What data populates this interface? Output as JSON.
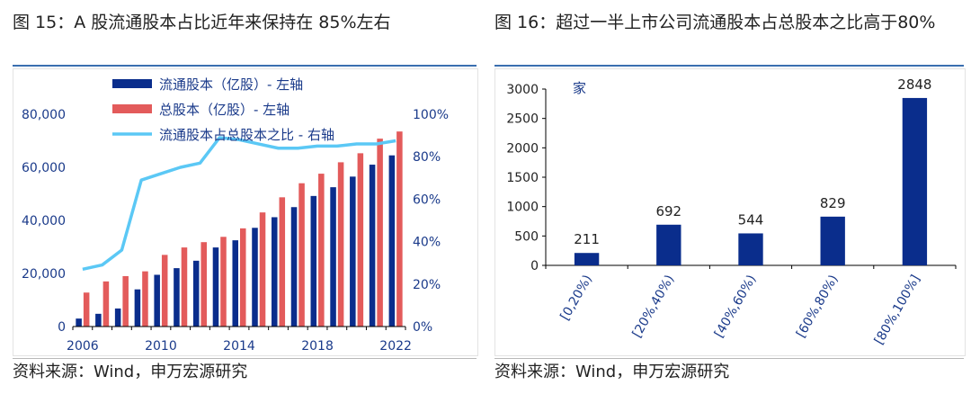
{
  "left_panel": {
    "title": "图 15：A 股流通股本占比近年来保持在 85%左右",
    "source": "资料来源：Wind，申万宏源研究"
  },
  "right_panel": {
    "title": "图 16：超过一半上市公司流通股本占总股本之比高于80%",
    "source": "资料来源：Wind，申万宏源研究"
  },
  "colors": {
    "float_bar": "#0a2d8c",
    "total_bar": "#e35b5b",
    "ratio_line": "#5bc8f5",
    "dist_bar": "#0a2d8c",
    "title_rule": "#3a6fb0"
  },
  "chart_data": [
    {
      "type": "bar",
      "categories": [
        "2006",
        "2007",
        "2008",
        "2009",
        "2010",
        "2011",
        "2012",
        "2013",
        "2014",
        "2015",
        "2016",
        "2017",
        "2018",
        "2019",
        "2020",
        "2021",
        "2022"
      ],
      "x_tick_labels": [
        "2006",
        "2010",
        "2014",
        "2018",
        "2022"
      ],
      "series": [
        {
          "name": "流通股本（亿股）- 左轴",
          "axis": "left",
          "type": "bar",
          "values": [
            3000,
            4800,
            6800,
            14000,
            19500,
            22000,
            24800,
            29800,
            32500,
            37200,
            41200,
            45000,
            49200,
            52500,
            56500,
            61000,
            64500
          ]
        },
        {
          "name": "总股本（亿股）- 左轴",
          "axis": "left",
          "type": "bar",
          "values": [
            12800,
            17000,
            19000,
            20800,
            27000,
            29800,
            31800,
            33800,
            37000,
            43000,
            48700,
            54000,
            57600,
            61900,
            65300,
            70800,
            73500
          ]
        },
        {
          "name": "流通股本占总股本之比 - 右轴",
          "axis": "right",
          "type": "line",
          "values": [
            27,
            29,
            36,
            69,
            72,
            75,
            77,
            89,
            88,
            86,
            84,
            84,
            85,
            85,
            86,
            86,
            87.5
          ]
        }
      ],
      "y_left": {
        "min": 0,
        "max": 80000,
        "ticks": [
          0,
          20000,
          40000,
          60000,
          80000
        ],
        "tick_labels": [
          "0",
          "20,000",
          "40,000",
          "60,000",
          "80,000"
        ]
      },
      "y_right": {
        "min": 0,
        "max": 100,
        "ticks": [
          0,
          20,
          40,
          60,
          80,
          100
        ],
        "tick_labels": [
          "0%",
          "20%",
          "40%",
          "60%",
          "80%",
          "100%"
        ]
      },
      "legend_placement": "top-left",
      "grid": false
    },
    {
      "type": "bar",
      "categories": [
        "[0,20%)",
        "[20%,40%)",
        "[40%,60%)",
        "[60%,80%)",
        "[80%,100%]"
      ],
      "values": [
        211,
        692,
        544,
        829,
        2848
      ],
      "data_labels": [
        "211",
        "692",
        "544",
        "829",
        "2848"
      ],
      "ylabel": "家",
      "y": {
        "min": 0,
        "max": 3000,
        "ticks": [
          0,
          500,
          1000,
          1500,
          2000,
          2500,
          3000
        ],
        "tick_labels": [
          "0",
          "500",
          "1000",
          "1500",
          "2000",
          "2500",
          "3000"
        ]
      },
      "grid": false
    }
  ]
}
